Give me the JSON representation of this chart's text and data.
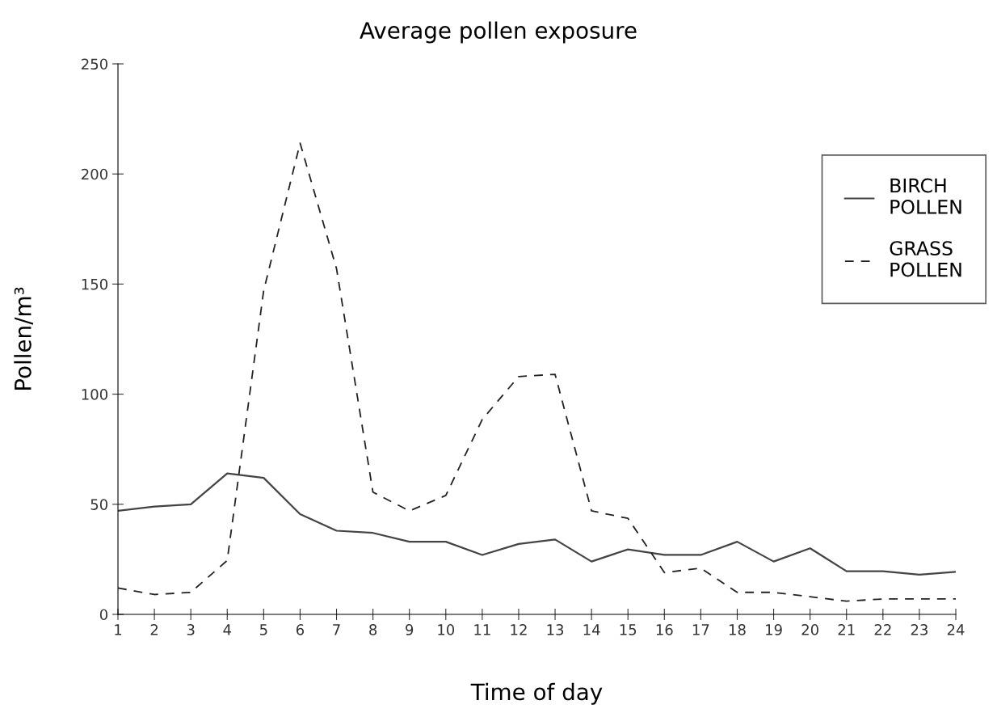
{
  "chart_data": {
    "type": "line",
    "title": "Average pollen exposure",
    "xlabel": "Time of day",
    "ylabel": "Pollen/m³",
    "x": [
      1,
      2,
      3,
      4,
      5,
      6,
      7,
      8,
      9,
      10,
      11,
      12,
      13,
      14,
      15,
      16,
      17,
      18,
      19,
      20,
      21,
      22,
      23,
      24
    ],
    "xlim": [
      1,
      24
    ],
    "xticks": [
      1,
      2,
      3,
      4,
      5,
      6,
      7,
      8,
      9,
      10,
      11,
      12,
      13,
      14,
      15,
      16,
      17,
      18,
      19,
      20,
      21,
      22,
      23,
      24
    ],
    "ylim": [
      0,
      250
    ],
    "yticks": [
      0,
      50,
      100,
      150,
      200,
      250
    ],
    "grid": false,
    "legend": "top right",
    "series": [
      {
        "name": "BIRCH\nPOLLEN",
        "color": "#444444",
        "line_style": "solid",
        "values": [
          47,
          49,
          50,
          64,
          62,
          45.5,
          38,
          37,
          33,
          33,
          27,
          32,
          34,
          24,
          29.5,
          27,
          27,
          33,
          24,
          30,
          19.6,
          19.6,
          18,
          19.3
        ]
      },
      {
        "name": "GRASS\nPOLLEN",
        "color": "#222222",
        "line_style": "dashed",
        "values": [
          12,
          9,
          10,
          24.5,
          147,
          214,
          157,
          55.5,
          47,
          54,
          88.5,
          108,
          109,
          47,
          43.6,
          19,
          21,
          10,
          10,
          8,
          6,
          7,
          7,
          7
        ]
      }
    ]
  }
}
